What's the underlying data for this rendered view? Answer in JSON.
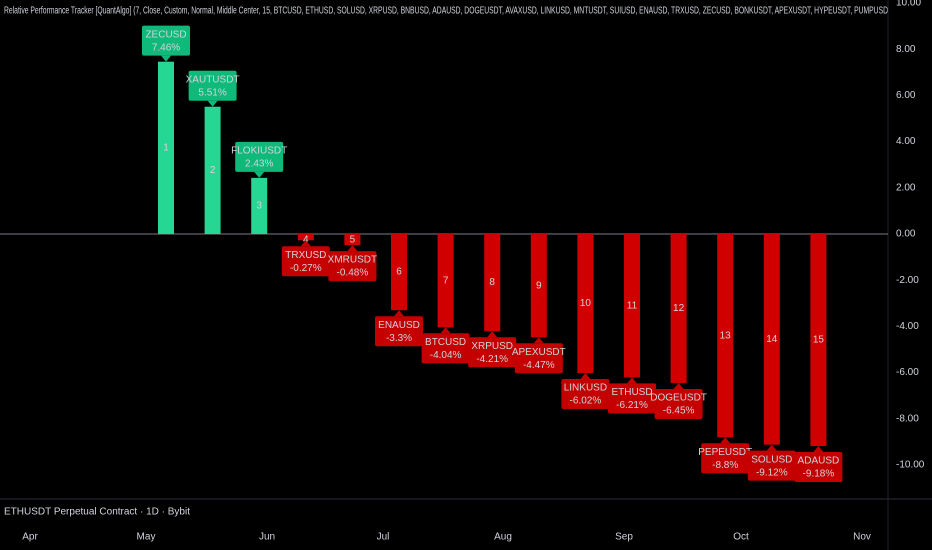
{
  "chart_data": {
    "type": "bar",
    "title": "Relative Performance Tracker [QuantAlgo] (7, Close, Custom, Normal, Middle Center, 15, BTCUSD, ETHUSD, SOLUSD, XRPUSD, BNBUSD, ADAUSD, DOGEUSDT, AVAXUSD, LINKUSD, MNTUSDT, SUIUSD, ENAUSD, TRXUSD, ZECUSD, BONKUSDT, APEXUSDT, HYPEUSDT, PUMPUSD",
    "footer": "ETHUSDT Perpetual Contract · 1D · Bybit",
    "categories": [
      "ZECUSD",
      "XAUTUSDT",
      "FLOKIUSDT",
      "TRXUSD",
      "XMRUSDT",
      "ENAUSD",
      "BTCUSD",
      "XRPUSD",
      "APEXUSDT",
      "LINKUSD",
      "ETHUSD",
      "DOGEUSDT",
      "PEPEUSDT",
      "SOLUSD",
      "ADAUSD"
    ],
    "ranks": [
      1,
      2,
      3,
      4,
      5,
      6,
      7,
      8,
      9,
      10,
      11,
      12,
      13,
      14,
      15
    ],
    "values": [
      7.46,
      5.51,
      2.43,
      -0.27,
      -0.48,
      -3.3,
      -4.04,
      -4.21,
      -4.47,
      -6.02,
      -6.21,
      -6.45,
      -8.8,
      -9.12,
      -9.18
    ],
    "value_labels": [
      "7.46%",
      "5.51%",
      "2.43%",
      "-0.27%",
      "-0.48%",
      "-3.3%",
      "-4.04%",
      "-4.21%",
      "-4.47%",
      "-6.02%",
      "-6.21%",
      "-6.45%",
      "-8.8%",
      "-9.12%",
      "-9.18%"
    ],
    "positive_color": "#26d693",
    "positive_label_color": "#0fb97a",
    "negative_color": "#d10000",
    "negative_label_color": "#c40000",
    "ylim": [
      -11.43,
      10.13
    ],
    "yticks": [
      {
        "value": 10,
        "label": "10.00"
      },
      {
        "value": 8,
        "label": "8.00"
      },
      {
        "value": 6,
        "label": "6.00"
      },
      {
        "value": 4,
        "label": "4.00"
      },
      {
        "value": 2,
        "label": "2.00"
      },
      {
        "value": 0,
        "label": "0.00"
      },
      {
        "value": -2,
        "label": "-2.00"
      },
      {
        "value": -4,
        "label": "-4.00"
      },
      {
        "value": -6,
        "label": "-6.00"
      },
      {
        "value": -8,
        "label": "-8.00"
      },
      {
        "value": -10,
        "label": "-10.00"
      }
    ],
    "x_axis_labels": [
      "Apr",
      "May",
      "Jun",
      "Jul",
      "Aug",
      "Sep",
      "Oct",
      "Nov"
    ]
  }
}
